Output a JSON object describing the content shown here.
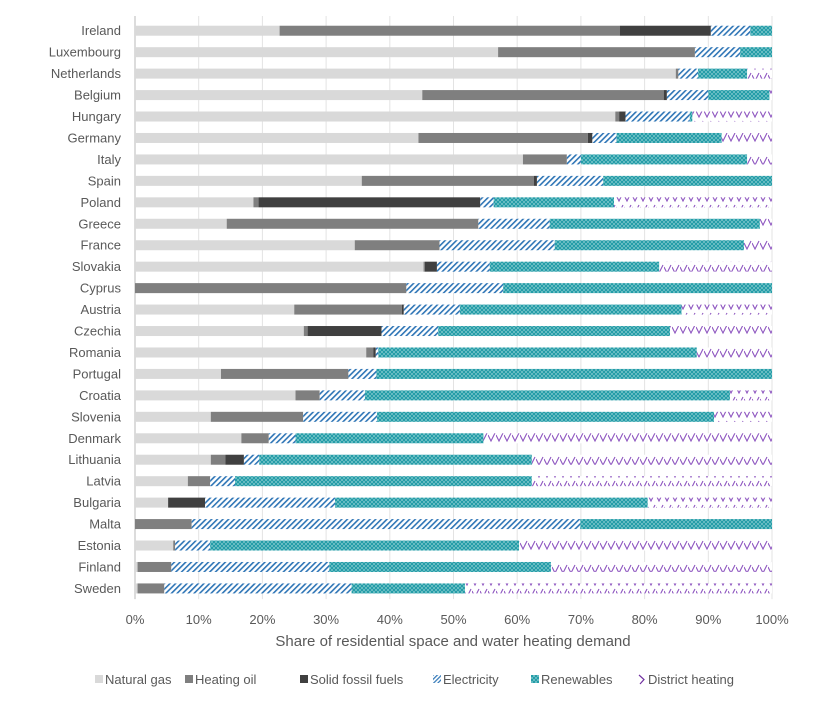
{
  "chart_data": {
    "type": "bar",
    "orientation": "horizontal",
    "stacked": true,
    "percent_stacked": true,
    "title": "",
    "xlabel": "Share of residential space and water heating demand",
    "ylabel": "",
    "xlim": [
      0,
      100
    ],
    "x_tick_labels": [
      "0%",
      "10%",
      "20%",
      "30%",
      "40%",
      "50%",
      "60%",
      "70%",
      "80%",
      "90%",
      "100%"
    ],
    "grid": "vertical",
    "legend_position": "bottom",
    "categories": [
      "Ireland",
      "Luxembourg",
      "Netherlands",
      "Belgium",
      "Hungary",
      "Germany",
      "Italy",
      "Spain",
      "Poland",
      "Greece",
      "France",
      "Slovakia",
      "Cyprus",
      "Austria",
      "Czechia",
      "Romania",
      "Portugal",
      "Croatia",
      "Slovenia",
      "Denmark",
      "Lithuania",
      "Latvia",
      "Bulgaria",
      "Malta",
      "Estonia",
      "Finland",
      "Sweden"
    ],
    "series": [
      {
        "name": "Natural gas",
        "color": "#d9d9d9",
        "pattern": "solid",
        "values": [
          22.7,
          57.0,
          84.9,
          45.1,
          75.4,
          44.5,
          60.9,
          35.6,
          18.6,
          14.4,
          34.5,
          45.3,
          0.0,
          25.0,
          26.5,
          36.3,
          13.5,
          25.2,
          11.9,
          16.7,
          11.9,
          8.3,
          5.2,
          0.0,
          6.0,
          0.4,
          0.4
        ]
      },
      {
        "name": "Heating oil",
        "color": "#7f7f7f",
        "pattern": "solid",
        "values": [
          53.4,
          30.9,
          0.4,
          37.9,
          0.6,
          26.6,
          6.9,
          27.0,
          0.8,
          39.5,
          13.3,
          0.2,
          42.6,
          16.9,
          0.6,
          1.1,
          20.0,
          3.8,
          14.5,
          4.3,
          2.3,
          3.5,
          0.0,
          8.9,
          0.3,
          5.3,
          4.2
        ]
      },
      {
        "name": "Solid fossil fuels",
        "color": "#404040",
        "pattern": "solid",
        "values": [
          14.3,
          0.0,
          0.0,
          0.5,
          1.0,
          0.7,
          0.0,
          0.5,
          34.8,
          0.0,
          0.0,
          1.9,
          0.0,
          0.3,
          11.6,
          0.4,
          0.0,
          0.0,
          0.0,
          0.0,
          2.9,
          0.0,
          5.8,
          0.0,
          0.0,
          0.0,
          0.0
        ]
      },
      {
        "name": "Electricity",
        "color": "#2e75b6",
        "pattern": "diagonal-lines",
        "values": [
          6.2,
          7.1,
          3.1,
          6.5,
          10.1,
          3.8,
          2.2,
          10.4,
          2.1,
          11.2,
          18.1,
          8.3,
          15.2,
          8.8,
          8.9,
          0.4,
          4.4,
          7.1,
          11.6,
          4.2,
          2.4,
          3.9,
          20.4,
          61.0,
          5.5,
          24.8,
          29.4
        ]
      },
      {
        "name": "Renewables",
        "color": "#2aa4b0",
        "pattern": "cross-hatch",
        "values": [
          3.4,
          5.0,
          7.7,
          9.6,
          0.4,
          16.5,
          26.1,
          26.5,
          18.9,
          33.0,
          29.7,
          26.6,
          42.2,
          34.8,
          36.4,
          50.0,
          62.1,
          57.3,
          52.9,
          29.5,
          42.8,
          46.6,
          49.1,
          30.1,
          48.5,
          34.8,
          17.8
        ]
      },
      {
        "name": "District heating",
        "color": "#7030a0",
        "pattern": "zigzag",
        "values": [
          0.0,
          0.0,
          3.9,
          0.4,
          12.5,
          7.9,
          3.9,
          0.0,
          24.8,
          1.9,
          4.4,
          17.7,
          0.0,
          14.2,
          16.0,
          11.8,
          0.0,
          6.6,
          9.1,
          45.3,
          37.7,
          37.7,
          19.5,
          0.0,
          39.7,
          34.7,
          48.2
        ]
      }
    ]
  }
}
